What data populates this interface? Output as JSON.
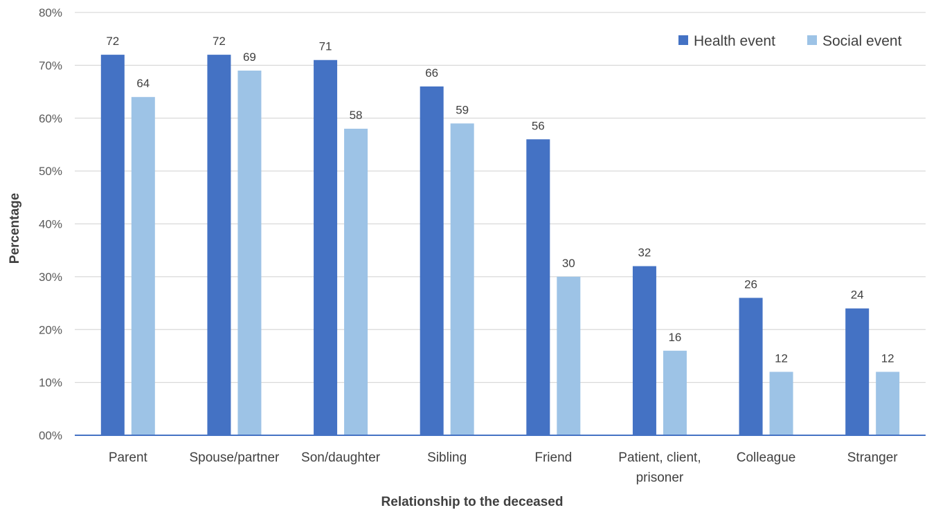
{
  "chart_data": {
    "type": "bar",
    "title": "",
    "xlabel": "Relationship to the deceased",
    "ylabel": "Percentage",
    "ylim": [
      0,
      80
    ],
    "yticks": [
      0,
      10,
      20,
      30,
      40,
      50,
      60,
      70,
      80
    ],
    "ytick_labels": [
      "00%",
      "10%",
      "20%",
      "30%",
      "40%",
      "50%",
      "60%",
      "70%",
      "80%"
    ],
    "categories": [
      [
        "Parent"
      ],
      [
        "Spouse/partner"
      ],
      [
        "Son/daughter"
      ],
      [
        "Sibling"
      ],
      [
        "Friend"
      ],
      [
        "Patient, client,",
        "prisoner"
      ],
      [
        "Colleague"
      ],
      [
        "Stranger"
      ]
    ],
    "series": [
      {
        "name": "Health event",
        "color": "#4472c4",
        "values": [
          72,
          72,
          71,
          66,
          56,
          32,
          26,
          24
        ]
      },
      {
        "name": "Social event",
        "color": "#9dc3e6",
        "values": [
          64,
          69,
          58,
          59,
          30,
          16,
          12,
          12
        ]
      }
    ],
    "grid": true,
    "legend_position": "top-right",
    "gridline_color": "#d9d9d9",
    "axis_color": "#4472c4"
  }
}
